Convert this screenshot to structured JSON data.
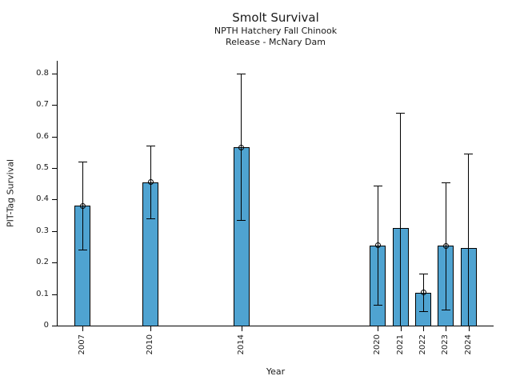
{
  "chart_data": {
    "type": "bar",
    "title": "Smolt Survival",
    "subtitle1": "NPTH Hatchery Fall Chinook",
    "subtitle2": "Release - McNary Dam",
    "xlabel": "Year",
    "ylabel": "PIT-Tag Survival",
    "categories": [
      "2007",
      "2010",
      "2014",
      "2020",
      "2021",
      "2022",
      "2023",
      "2024"
    ],
    "x_years": [
      2007,
      2010,
      2014,
      2020,
      2021,
      2022,
      2023,
      2024
    ],
    "values": [
      0.38,
      0.455,
      0.565,
      0.255,
      0.31,
      0.105,
      0.253,
      0.247
    ],
    "error_low": [
      0.24,
      0.34,
      0.335,
      0.065,
      0.0,
      0.045,
      0.05,
      0.0
    ],
    "error_high": [
      0.52,
      0.57,
      0.8,
      0.445,
      0.675,
      0.165,
      0.455,
      0.545
    ],
    "point_markers": [
      true,
      true,
      true,
      true,
      false,
      true,
      true,
      false
    ],
    "yticks": [
      0,
      0.1,
      0.2,
      0.3,
      0.4,
      0.5,
      0.6,
      0.7,
      0.8
    ],
    "ytick_labels": [
      "0",
      "0.1",
      "0.2",
      "0.3",
      "0.4",
      "0.5",
      "0.6",
      "0.7",
      "0.8"
    ],
    "ylim": [
      0,
      0.84
    ],
    "xlim": [
      2005.9,
      2025.1
    ],
    "grid": false,
    "legend": "none",
    "bar_color": "#4fa3d1",
    "bar_edge_color": "#000000",
    "errorbar_color": "#000000",
    "background_color": "#ffffff"
  }
}
